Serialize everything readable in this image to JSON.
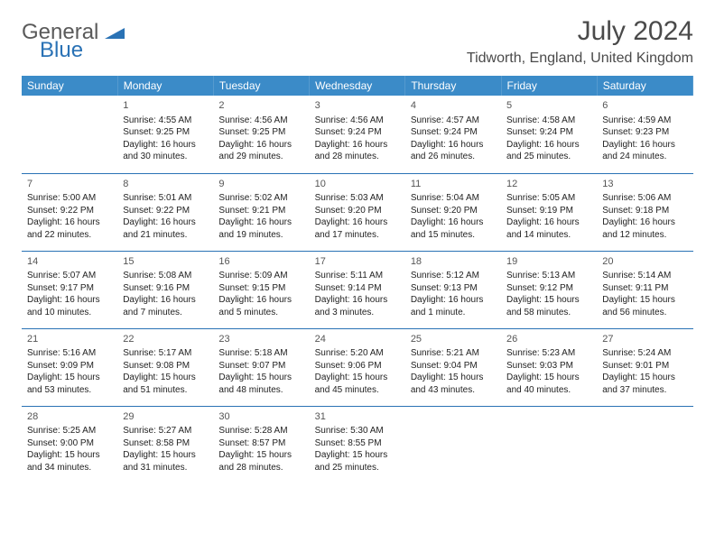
{
  "logo": {
    "line1": "General",
    "line2": "Blue",
    "accent_color": "#2a72b5",
    "text_color": "#5a5a5a"
  },
  "title": "July 2024",
  "location": "Tidworth, England, United Kingdom",
  "colors": {
    "header_bg": "#3b8bc8",
    "header_fg": "#ffffff",
    "rule": "#2a72b5"
  },
  "day_headers": [
    "Sunday",
    "Monday",
    "Tuesday",
    "Wednesday",
    "Thursday",
    "Friday",
    "Saturday"
  ],
  "weeks": [
    [
      null,
      {
        "n": "1",
        "sr": "Sunrise: 4:55 AM",
        "ss": "Sunset: 9:25 PM",
        "dl": "Daylight: 16 hours and 30 minutes."
      },
      {
        "n": "2",
        "sr": "Sunrise: 4:56 AM",
        "ss": "Sunset: 9:25 PM",
        "dl": "Daylight: 16 hours and 29 minutes."
      },
      {
        "n": "3",
        "sr": "Sunrise: 4:56 AM",
        "ss": "Sunset: 9:24 PM",
        "dl": "Daylight: 16 hours and 28 minutes."
      },
      {
        "n": "4",
        "sr": "Sunrise: 4:57 AM",
        "ss": "Sunset: 9:24 PM",
        "dl": "Daylight: 16 hours and 26 minutes."
      },
      {
        "n": "5",
        "sr": "Sunrise: 4:58 AM",
        "ss": "Sunset: 9:24 PM",
        "dl": "Daylight: 16 hours and 25 minutes."
      },
      {
        "n": "6",
        "sr": "Sunrise: 4:59 AM",
        "ss": "Sunset: 9:23 PM",
        "dl": "Daylight: 16 hours and 24 minutes."
      }
    ],
    [
      {
        "n": "7",
        "sr": "Sunrise: 5:00 AM",
        "ss": "Sunset: 9:22 PM",
        "dl": "Daylight: 16 hours and 22 minutes."
      },
      {
        "n": "8",
        "sr": "Sunrise: 5:01 AM",
        "ss": "Sunset: 9:22 PM",
        "dl": "Daylight: 16 hours and 21 minutes."
      },
      {
        "n": "9",
        "sr": "Sunrise: 5:02 AM",
        "ss": "Sunset: 9:21 PM",
        "dl": "Daylight: 16 hours and 19 minutes."
      },
      {
        "n": "10",
        "sr": "Sunrise: 5:03 AM",
        "ss": "Sunset: 9:20 PM",
        "dl": "Daylight: 16 hours and 17 minutes."
      },
      {
        "n": "11",
        "sr": "Sunrise: 5:04 AM",
        "ss": "Sunset: 9:20 PM",
        "dl": "Daylight: 16 hours and 15 minutes."
      },
      {
        "n": "12",
        "sr": "Sunrise: 5:05 AM",
        "ss": "Sunset: 9:19 PM",
        "dl": "Daylight: 16 hours and 14 minutes."
      },
      {
        "n": "13",
        "sr": "Sunrise: 5:06 AM",
        "ss": "Sunset: 9:18 PM",
        "dl": "Daylight: 16 hours and 12 minutes."
      }
    ],
    [
      {
        "n": "14",
        "sr": "Sunrise: 5:07 AM",
        "ss": "Sunset: 9:17 PM",
        "dl": "Daylight: 16 hours and 10 minutes."
      },
      {
        "n": "15",
        "sr": "Sunrise: 5:08 AM",
        "ss": "Sunset: 9:16 PM",
        "dl": "Daylight: 16 hours and 7 minutes."
      },
      {
        "n": "16",
        "sr": "Sunrise: 5:09 AM",
        "ss": "Sunset: 9:15 PM",
        "dl": "Daylight: 16 hours and 5 minutes."
      },
      {
        "n": "17",
        "sr": "Sunrise: 5:11 AM",
        "ss": "Sunset: 9:14 PM",
        "dl": "Daylight: 16 hours and 3 minutes."
      },
      {
        "n": "18",
        "sr": "Sunrise: 5:12 AM",
        "ss": "Sunset: 9:13 PM",
        "dl": "Daylight: 16 hours and 1 minute."
      },
      {
        "n": "19",
        "sr": "Sunrise: 5:13 AM",
        "ss": "Sunset: 9:12 PM",
        "dl": "Daylight: 15 hours and 58 minutes."
      },
      {
        "n": "20",
        "sr": "Sunrise: 5:14 AM",
        "ss": "Sunset: 9:11 PM",
        "dl": "Daylight: 15 hours and 56 minutes."
      }
    ],
    [
      {
        "n": "21",
        "sr": "Sunrise: 5:16 AM",
        "ss": "Sunset: 9:09 PM",
        "dl": "Daylight: 15 hours and 53 minutes."
      },
      {
        "n": "22",
        "sr": "Sunrise: 5:17 AM",
        "ss": "Sunset: 9:08 PM",
        "dl": "Daylight: 15 hours and 51 minutes."
      },
      {
        "n": "23",
        "sr": "Sunrise: 5:18 AM",
        "ss": "Sunset: 9:07 PM",
        "dl": "Daylight: 15 hours and 48 minutes."
      },
      {
        "n": "24",
        "sr": "Sunrise: 5:20 AM",
        "ss": "Sunset: 9:06 PM",
        "dl": "Daylight: 15 hours and 45 minutes."
      },
      {
        "n": "25",
        "sr": "Sunrise: 5:21 AM",
        "ss": "Sunset: 9:04 PM",
        "dl": "Daylight: 15 hours and 43 minutes."
      },
      {
        "n": "26",
        "sr": "Sunrise: 5:23 AM",
        "ss": "Sunset: 9:03 PM",
        "dl": "Daylight: 15 hours and 40 minutes."
      },
      {
        "n": "27",
        "sr": "Sunrise: 5:24 AM",
        "ss": "Sunset: 9:01 PM",
        "dl": "Daylight: 15 hours and 37 minutes."
      }
    ],
    [
      {
        "n": "28",
        "sr": "Sunrise: 5:25 AM",
        "ss": "Sunset: 9:00 PM",
        "dl": "Daylight: 15 hours and 34 minutes."
      },
      {
        "n": "29",
        "sr": "Sunrise: 5:27 AM",
        "ss": "Sunset: 8:58 PM",
        "dl": "Daylight: 15 hours and 31 minutes."
      },
      {
        "n": "30",
        "sr": "Sunrise: 5:28 AM",
        "ss": "Sunset: 8:57 PM",
        "dl": "Daylight: 15 hours and 28 minutes."
      },
      {
        "n": "31",
        "sr": "Sunrise: 5:30 AM",
        "ss": "Sunset: 8:55 PM",
        "dl": "Daylight: 15 hours and 25 minutes."
      },
      null,
      null,
      null
    ]
  ]
}
